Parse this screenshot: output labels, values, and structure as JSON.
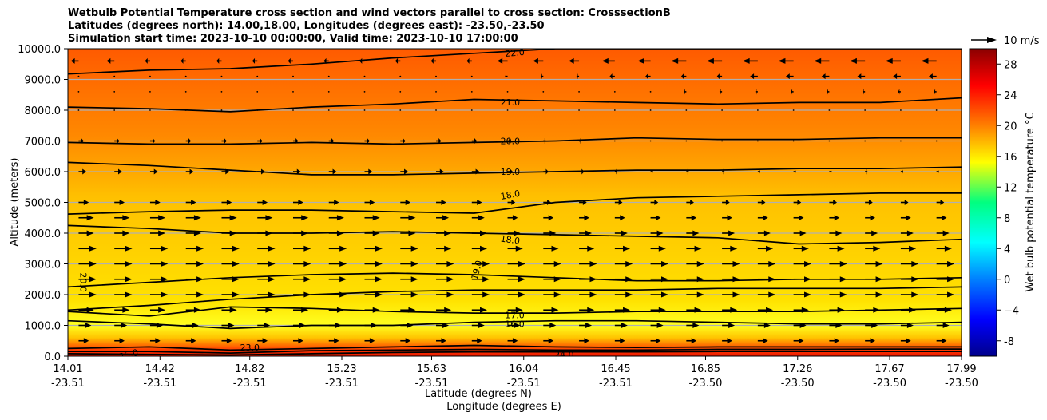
{
  "chart_data": {
    "type": "contour-quiver",
    "title_lines": [
      "Wetbulb Potential Temperature cross section and wind vectors parallel to cross section: CrosssectionB",
      "Latitudes (degrees north): 14.00,18.00, Longitudes (degrees east): -23.50,-23.50",
      "Simulation start time: 2023-10-10 00:00:00, Valid time: 2023-10-10 17:00:00"
    ],
    "xlabel_lat": "Latitude (degrees N)",
    "xlabel_lon": "Longitude (degrees E)",
    "ylabel": "Altitude (meters)",
    "xlim": [
      14.01,
      17.99
    ],
    "ylim": [
      0,
      10000
    ],
    "x_ticks": [
      {
        "lat": "14.01",
        "lon": "-23.51",
        "v": 14.01
      },
      {
        "lat": "14.42",
        "lon": "-23.51",
        "v": 14.42
      },
      {
        "lat": "14.82",
        "lon": "-23.51",
        "v": 14.82
      },
      {
        "lat": "15.23",
        "lon": "-23.51",
        "v": 15.23
      },
      {
        "lat": "15.63",
        "lon": "-23.51",
        "v": 15.63
      },
      {
        "lat": "16.04",
        "lon": "-23.51",
        "v": 16.04
      },
      {
        "lat": "16.45",
        "lon": "-23.51",
        "v": 16.45
      },
      {
        "lat": "16.85",
        "lon": "-23.50",
        "v": 16.85
      },
      {
        "lat": "17.26",
        "lon": "-23.50",
        "v": 17.26
      },
      {
        "lat": "17.67",
        "lon": "-23.50",
        "v": 17.67
      },
      {
        "lat": "17.99",
        "lon": "-23.50",
        "v": 17.99
      }
    ],
    "y_ticks": [
      {
        "label": "0.0",
        "v": 0
      },
      {
        "label": "1000.0",
        "v": 1000
      },
      {
        "label": "2000.0",
        "v": 2000
      },
      {
        "label": "3000.0",
        "v": 3000
      },
      {
        "label": "4000.0",
        "v": 4000
      },
      {
        "label": "5000.0",
        "v": 5000
      },
      {
        "label": "6000.0",
        "v": 6000
      },
      {
        "label": "7000.0",
        "v": 7000
      },
      {
        "label": "8000.0",
        "v": 8000
      },
      {
        "label": "9000.0",
        "v": 9000
      },
      {
        "label": "10000.0",
        "v": 10000
      }
    ],
    "colorbar": {
      "label": "Wet bulb potential temperature $^\\circ$C",
      "label_display": "Wet bulb potential temperature °C",
      "range": [
        -10,
        30
      ],
      "ticks": [
        "-8",
        "−4",
        "0",
        "4",
        "8",
        "12",
        "16",
        "20",
        "24",
        "28"
      ],
      "tick_values": [
        -8,
        -4,
        0,
        4,
        8,
        12,
        16,
        20,
        24,
        28
      ]
    },
    "quiver_key": "10 m/s",
    "contours": [
      {
        "value": 22.0,
        "label": "22.0",
        "alt": [
          9180,
          9300,
          9350,
          9500,
          9700,
          9850,
          10000,
          10000,
          10000,
          10000,
          10000,
          10000
        ],
        "label_at": {
          "x": 16.0,
          "y": 9870,
          "rot": -5
        }
      },
      {
        "value": 21.0,
        "label": "21.0",
        "alt": [
          8100,
          8050,
          7950,
          8100,
          8200,
          8350,
          8300,
          8250,
          8200,
          8250,
          8250,
          8400
        ],
        "label_at": {
          "x": 15.98,
          "y": 8260,
          "rot": 0
        }
      },
      {
        "value": 20.0,
        "label": "20.0",
        "alt": [
          6950,
          6900,
          6900,
          6950,
          6900,
          6950,
          7000,
          7100,
          7050,
          7050,
          7100,
          7100
        ],
        "label_at": {
          "x": 15.98,
          "y": 7000,
          "rot": 0
        }
      },
      {
        "value": 19.0,
        "label": "19.0",
        "alt": [
          6300,
          6200,
          6050,
          5900,
          5900,
          5950,
          6000,
          6050,
          6050,
          6100,
          6100,
          6150
        ],
        "label_at": {
          "x": 15.98,
          "y": 6000,
          "rot": 0
        }
      },
      {
        "value": 18.0,
        "label": "18.0",
        "alt": [
          4620,
          4700,
          4750,
          4750,
          4700,
          4650,
          5000,
          5150,
          5200,
          5250,
          5300,
          5300
        ],
        "label_at": {
          "x": 15.98,
          "y": 5250,
          "rot": -10
        }
      },
      {
        "value": 18.0,
        "label": "18.0",
        "alt": [
          4250,
          4150,
          4000,
          4000,
          4050,
          4000,
          3950,
          3900,
          3850,
          3650,
          3700,
          3800
        ],
        "label_at": {
          "x": 15.98,
          "y": 3790,
          "rot": 8
        }
      },
      {
        "value": 19.0,
        "label": "19.0",
        "alt": [
          2250,
          2400,
          2550,
          2650,
          2700,
          2650,
          2550,
          2450,
          2450,
          2500,
          2500,
          2550
        ],
        "label_at": {
          "x": 15.83,
          "y": 2800,
          "rot": -75
        }
      },
      {
        "value": 20.0,
        "label": "20.0",
        "alt": [
          1500,
          1650,
          1850,
          2000,
          2100,
          2150,
          2150,
          2150,
          2200,
          2200,
          2200,
          2250
        ],
        "label_at": {
          "x": 14.08,
          "y": 2400,
          "rot": 90
        }
      },
      {
        "value": 17.0,
        "label": "17.0",
        "alt": [
          1450,
          1300,
          1600,
          1550,
          1450,
          1400,
          1400,
          1450,
          1450,
          1450,
          1500,
          1550
        ],
        "label_at": {
          "x": 16.0,
          "y": 1340,
          "rot": 0
        }
      },
      {
        "value": 16.0,
        "label": "16.0",
        "alt": [
          1150,
          1050,
          900,
          1000,
          1000,
          1100,
          1150,
          1150,
          1100,
          1050,
          1050,
          1100
        ],
        "label_at": {
          "x": 16.0,
          "y": 1050,
          "rot": 0
        }
      },
      {
        "value": 23.0,
        "label": "23.0",
        "alt": [
          250,
          300,
          200,
          250,
          300,
          350,
          300,
          280,
          300,
          300,
          300,
          300
        ],
        "label_at": {
          "x": 14.82,
          "y": 280,
          "rot": 0
        }
      },
      {
        "value": 24.0,
        "label": "24.0",
        "alt": [
          150,
          150,
          100,
          180,
          200,
          220,
          200,
          200,
          220,
          220,
          230,
          230
        ],
        "label_at": {
          "x": 16.22,
          "y": 50,
          "rot": 0
        }
      },
      {
        "value": 25.0,
        "label": "25.0",
        "alt": [
          80,
          60,
          40,
          80,
          120,
          140,
          140,
          140,
          150,
          150,
          150,
          150
        ],
        "label_at": {
          "x": 14.28,
          "y": 60,
          "rot": -15
        }
      }
    ],
    "wind_u_ms": [
      {
        "alt": 9600,
        "u": [
          -3,
          -2,
          -2,
          -2,
          -2,
          -2,
          -4,
          -5,
          -6,
          -6,
          -6,
          -6
        ]
      },
      {
        "alt": 9100,
        "u": [
          0,
          0,
          0,
          0,
          0,
          0,
          -1,
          -2,
          -2,
          -3,
          -3,
          -3
        ]
      },
      {
        "alt": 8600,
        "u": [
          0,
          0,
          0,
          0,
          0,
          0,
          0,
          0,
          -1,
          -1,
          -1,
          -1
        ]
      },
      {
        "alt": 8000,
        "u": [
          0,
          0,
          0,
          0,
          0,
          0,
          0,
          0,
          0,
          0,
          0,
          0
        ]
      },
      {
        "alt": 7000,
        "u": [
          2,
          2,
          2,
          2,
          2,
          2,
          1,
          0,
          0,
          0,
          0,
          0
        ]
      },
      {
        "alt": 6000,
        "u": [
          3,
          3,
          3,
          3,
          3,
          3,
          2,
          1,
          1,
          1,
          1,
          1
        ]
      },
      {
        "alt": 5000,
        "u": [
          4,
          4,
          4,
          4,
          4,
          4,
          3,
          3,
          3,
          3,
          3,
          3
        ]
      },
      {
        "alt": 4500,
        "u": [
          6,
          6,
          6,
          6,
          6,
          5,
          4,
          4,
          4,
          4,
          4,
          4
        ]
      },
      {
        "alt": 4000,
        "u": [
          6,
          6,
          6,
          6,
          6,
          6,
          5,
          5,
          5,
          5,
          5,
          5
        ]
      },
      {
        "alt": 3500,
        "u": [
          7,
          7,
          7,
          7,
          7,
          6,
          6,
          6,
          6,
          6,
          6,
          6
        ]
      },
      {
        "alt": 3000,
        "u": [
          7,
          7,
          7,
          7,
          7,
          7,
          7,
          7,
          7,
          7,
          7,
          7
        ]
      },
      {
        "alt": 2500,
        "u": [
          7,
          7,
          7,
          7,
          7,
          7,
          7,
          7,
          7,
          7,
          7,
          7
        ]
      },
      {
        "alt": 2000,
        "u": [
          7,
          7,
          7,
          7,
          7,
          7,
          7,
          7,
          7,
          7,
          7,
          7
        ]
      },
      {
        "alt": 1500,
        "u": [
          6,
          6,
          6,
          6,
          6,
          6,
          6,
          6,
          6,
          6,
          6,
          6
        ]
      },
      {
        "alt": 1000,
        "u": [
          5,
          5,
          5,
          5,
          5,
          5,
          5,
          5,
          5,
          5,
          5,
          5
        ]
      },
      {
        "alt": 500,
        "u": [
          4,
          4,
          4,
          4,
          4,
          4,
          4,
          4,
          4,
          4,
          4,
          4
        ]
      }
    ],
    "colors": {
      "low": "#00008b",
      "mid": "#00ff80",
      "high": "#ff5a00",
      "max": "#8b0000",
      "contour": "#000000",
      "grid": "#b0b0b0"
    }
  }
}
